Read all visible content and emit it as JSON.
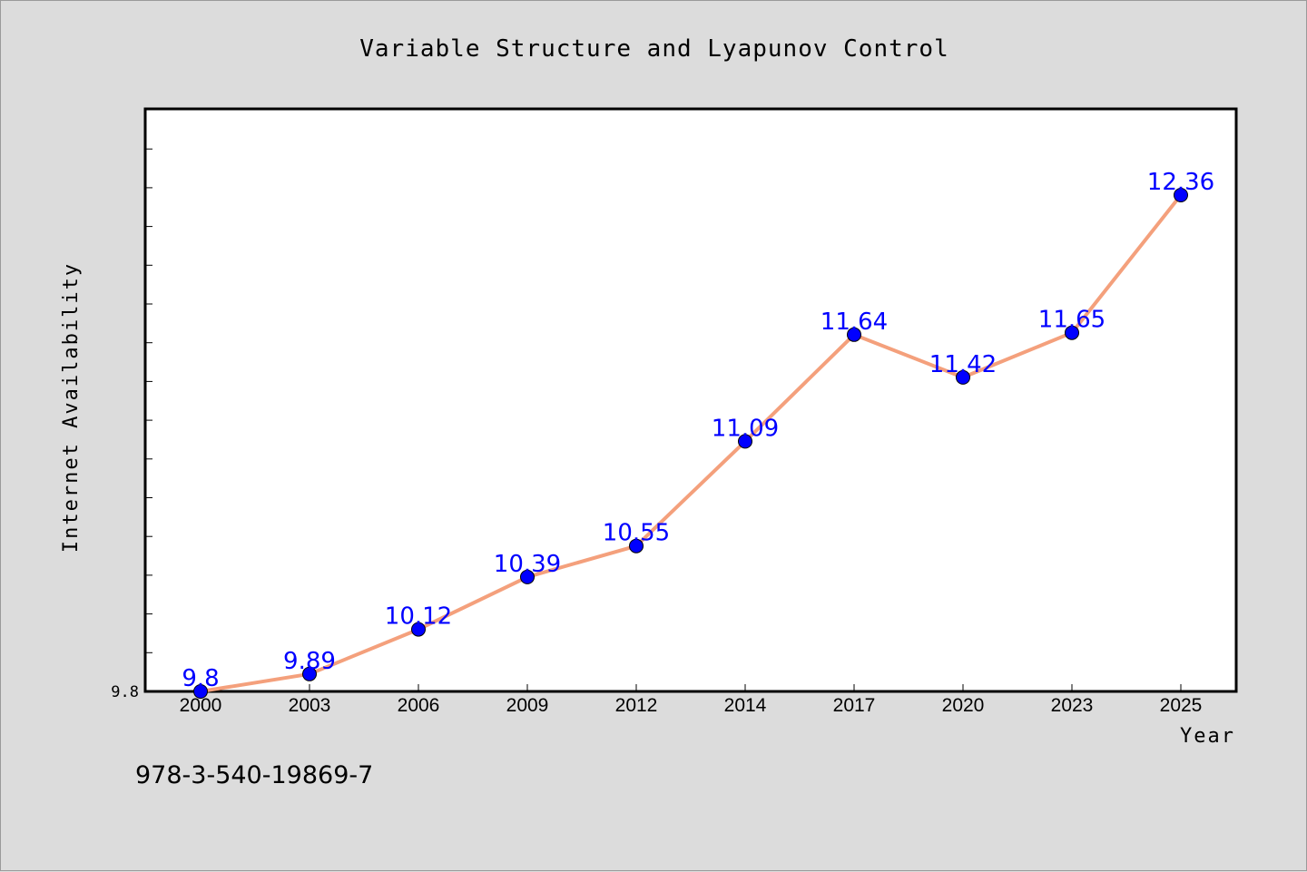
{
  "chart_data": {
    "type": "line",
    "title": "Variable Structure and Lyapunov Control",
    "xlabel": "Year",
    "ylabel": "Internet Availability",
    "categories": [
      "2000",
      "2003",
      "2006",
      "2009",
      "2012",
      "2014",
      "2017",
      "2020",
      "2023",
      "2025"
    ],
    "series": [
      {
        "values": [
          9.8,
          9.89,
          10.12,
          10.39,
          10.55,
          11.09,
          11.64,
          11.42,
          11.65,
          12.36
        ],
        "data_labels": [
          "9.8",
          "9.89",
          "10.12",
          "10.39",
          "10.55",
          "11.09",
          "11.64",
          "11.42",
          "11.65",
          "12.36"
        ],
        "line_color": "#f4a07c",
        "marker_color": "#0000ff"
      }
    ],
    "y_tick_labels": [
      "9.8"
    ],
    "ylim": [
      9.8,
      12.8
    ],
    "grid": false,
    "legend": "none"
  },
  "footer": {
    "isbn": "978-3-540-19869-7"
  },
  "colors": {
    "background": "#dcdcdc",
    "plot_background": "#ffffff",
    "line": "#f4a07c",
    "marker": "#0000ff",
    "data_label": "#0000ff"
  }
}
